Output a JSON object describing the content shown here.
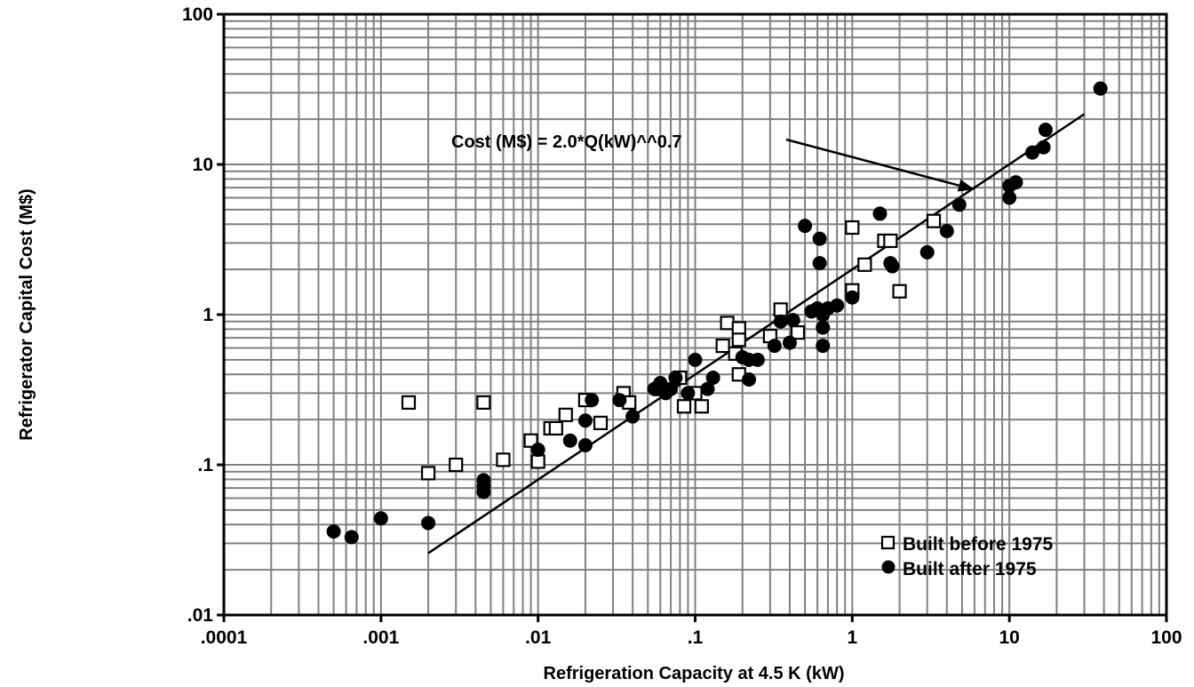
{
  "chart_data": {
    "type": "scatter",
    "xlabel": "Refrigeration Capacity at 4.5 K (kW)",
    "ylabel": "Refrigerator Capital Cost (M$)",
    "xscale": "log",
    "yscale": "log",
    "xlim": [
      0.0001,
      100
    ],
    "ylim": [
      0.01,
      100
    ],
    "grid": true,
    "legend_position": "bottom-right",
    "x_tick_labels": [
      ".0001",
      ".001",
      ".01",
      ".1",
      "1",
      "10",
      "100"
    ],
    "y_tick_labels": [
      ".01",
      ".1",
      "1",
      "10",
      "100"
    ],
    "colors": {
      "open_marker": "#000000",
      "filled_marker": "#000000",
      "grid": "#808080"
    },
    "series": [
      {
        "name": "Built before 1975",
        "marker": "open-square",
        "points": [
          [
            0.0015,
            0.26
          ],
          [
            0.002,
            0.088
          ],
          [
            0.003,
            0.1
          ],
          [
            0.0045,
            0.26
          ],
          [
            0.006,
            0.108
          ],
          [
            0.009,
            0.145
          ],
          [
            0.01,
            0.105
          ],
          [
            0.012,
            0.175
          ],
          [
            0.013,
            0.175
          ],
          [
            0.015,
            0.215
          ],
          [
            0.02,
            0.27
          ],
          [
            0.025,
            0.19
          ],
          [
            0.035,
            0.3
          ],
          [
            0.038,
            0.26
          ],
          [
            0.06,
            0.32
          ],
          [
            0.08,
            0.38
          ],
          [
            0.085,
            0.245
          ],
          [
            0.1,
            0.3
          ],
          [
            0.11,
            0.245
          ],
          [
            0.15,
            0.62
          ],
          [
            0.16,
            0.88
          ],
          [
            0.18,
            0.55
          ],
          [
            0.19,
            0.81
          ],
          [
            0.19,
            0.68
          ],
          [
            0.19,
            0.4
          ],
          [
            0.3,
            0.72
          ],
          [
            0.35,
            1.08
          ],
          [
            0.45,
            0.76
          ],
          [
            1.0,
            3.8
          ],
          [
            1.0,
            1.45
          ],
          [
            1.2,
            2.15
          ],
          [
            1.6,
            3.1
          ],
          [
            1.75,
            3.1
          ],
          [
            2.0,
            1.43
          ],
          [
            3.3,
            4.2
          ]
        ]
      },
      {
        "name": "Built after 1975",
        "marker": "filled-circle",
        "points": [
          [
            0.0005,
            0.036
          ],
          [
            0.00065,
            0.033
          ],
          [
            0.001,
            0.044
          ],
          [
            0.002,
            0.041
          ],
          [
            0.0045,
            0.079
          ],
          [
            0.0045,
            0.072
          ],
          [
            0.0045,
            0.066
          ],
          [
            0.01,
            0.126
          ],
          [
            0.016,
            0.145
          ],
          [
            0.02,
            0.197
          ],
          [
            0.02,
            0.135
          ],
          [
            0.022,
            0.27
          ],
          [
            0.033,
            0.27
          ],
          [
            0.04,
            0.21
          ],
          [
            0.055,
            0.32
          ],
          [
            0.06,
            0.35
          ],
          [
            0.065,
            0.3
          ],
          [
            0.07,
            0.32
          ],
          [
            0.075,
            0.38
          ],
          [
            0.09,
            0.3
          ],
          [
            0.1,
            0.5
          ],
          [
            0.12,
            0.32
          ],
          [
            0.13,
            0.38
          ],
          [
            0.2,
            0.52
          ],
          [
            0.22,
            0.5
          ],
          [
            0.22,
            0.37
          ],
          [
            0.25,
            0.5
          ],
          [
            0.32,
            0.62
          ],
          [
            0.35,
            0.9
          ],
          [
            0.4,
            0.65
          ],
          [
            0.42,
            0.92
          ],
          [
            0.5,
            3.9
          ],
          [
            0.55,
            1.05
          ],
          [
            0.6,
            1.1
          ],
          [
            0.62,
            3.2
          ],
          [
            0.62,
            2.2
          ],
          [
            0.65,
            1.0
          ],
          [
            0.65,
            0.82
          ],
          [
            0.65,
            0.62
          ],
          [
            0.7,
            1.1
          ],
          [
            0.8,
            1.15
          ],
          [
            1.0,
            1.3
          ],
          [
            1.5,
            4.7
          ],
          [
            1.75,
            2.2
          ],
          [
            1.8,
            2.1
          ],
          [
            3.0,
            2.6
          ],
          [
            4.0,
            3.6
          ],
          [
            4.8,
            5.4
          ],
          [
            10,
            7.2
          ],
          [
            10,
            6.0
          ],
          [
            11,
            7.6
          ],
          [
            14,
            12
          ],
          [
            16.5,
            13
          ],
          [
            17,
            17
          ],
          [
            38,
            32
          ]
        ]
      }
    ],
    "fit": {
      "coefficient": 2.0,
      "exponent": 0.7,
      "x_range": [
        0.002,
        30
      ]
    },
    "annotation": {
      "text": "Cost (M$) = 2.0*Q(kW)^^0.7",
      "arrow_target": [
        6.0,
        6.8
      ]
    }
  }
}
